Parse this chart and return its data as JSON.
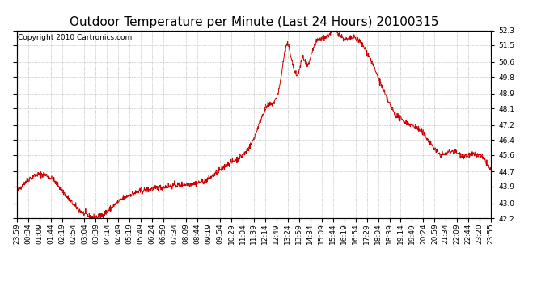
{
  "title": "Outdoor Temperature per Minute (Last 24 Hours) 20100315",
  "copyright_text": "Copyright 2010 Cartronics.com",
  "line_color": "#cc0000",
  "bg_color": "#ffffff",
  "grid_color": "#aaaaaa",
  "yticks": [
    42.2,
    43.0,
    43.9,
    44.7,
    45.6,
    46.4,
    47.2,
    48.1,
    48.9,
    49.8,
    50.6,
    51.5,
    52.3
  ],
  "ylim": [
    42.2,
    52.3
  ],
  "xtick_labels": [
    "23:59",
    "00:34",
    "01:09",
    "01:44",
    "02:19",
    "02:54",
    "03:04",
    "03:39",
    "04:14",
    "04:49",
    "05:19",
    "05:49",
    "06:24",
    "06:59",
    "07:34",
    "08:09",
    "08:44",
    "09:19",
    "09:54",
    "10:29",
    "11:04",
    "11:39",
    "12:14",
    "12:49",
    "13:24",
    "13:59",
    "14:34",
    "15:09",
    "15:44",
    "16:19",
    "16:54",
    "17:29",
    "18:04",
    "18:39",
    "19:14",
    "19:49",
    "20:24",
    "20:59",
    "21:34",
    "22:09",
    "22:44",
    "23:20",
    "23:55"
  ],
  "title_fontsize": 11,
  "tick_fontsize": 6.5,
  "copyright_fontsize": 6.5,
  "control_t": [
    0,
    55,
    100,
    155,
    250,
    310,
    350,
    420,
    500,
    580,
    650,
    720,
    760,
    800,
    820,
    840,
    855,
    870,
    880,
    900,
    920,
    950,
    965,
    980,
    1000,
    1020,
    1050,
    1080,
    1110,
    1150,
    1200,
    1250,
    1290,
    1320,
    1350,
    1380,
    1410,
    1440
  ],
  "control_v": [
    43.6,
    44.5,
    44.4,
    43.3,
    42.3,
    43.1,
    43.5,
    43.8,
    44.0,
    44.3,
    45.2,
    46.5,
    48.2,
    49.5,
    51.5,
    50.3,
    50.0,
    50.8,
    50.4,
    51.3,
    51.8,
    52.1,
    52.3,
    52.1,
    51.8,
    51.9,
    51.5,
    50.5,
    49.2,
    47.8,
    47.2,
    46.4,
    45.6,
    45.8,
    45.6,
    45.6,
    45.5,
    44.7
  ]
}
